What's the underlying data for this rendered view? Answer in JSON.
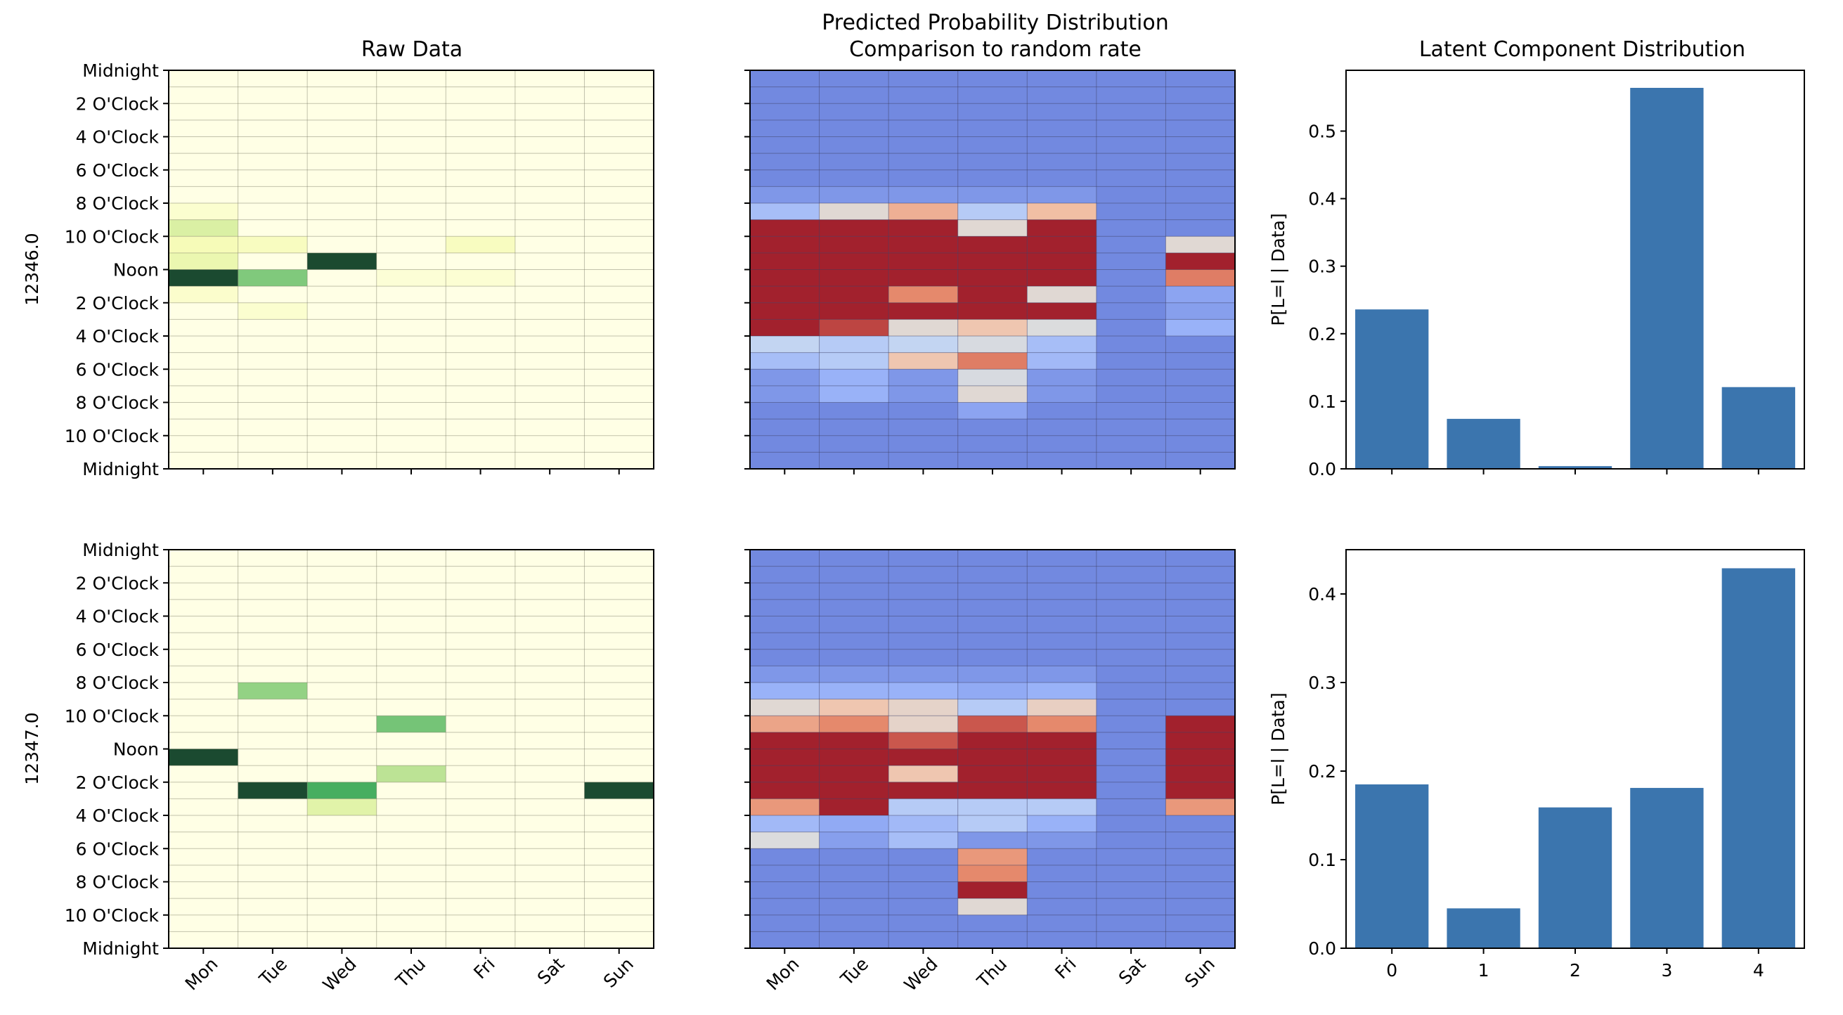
{
  "titles": {
    "raw": "Raw Data",
    "pred_line1": "Predicted Probability Distribution",
    "pred_line2": "Comparison to random rate",
    "latent": "Latent Component Distribution"
  },
  "row_labels": [
    "12346.0",
    "12347.0"
  ],
  "latent_ylabel": "P[L=l | Data]",
  "colors": {
    "raw_colormap": [
      "#ffffe5",
      "#f7fcb9",
      "#d9f0a3",
      "#addd8e",
      "#78c679",
      "#41ab5d",
      "#238443",
      "#1b4a30"
    ],
    "pred_colormap": [
      "#7289e0",
      "#97b0f8",
      "#c0d4f5",
      "#dddcdb",
      "#f2c2a8",
      "#e68b6d",
      "#c9544b",
      "#a2212d"
    ],
    "bar": "#3b75ae"
  },
  "chart_data": [
    {
      "type": "heatmap",
      "title": "Raw Data",
      "ylabel": "12346.0",
      "days": [
        "Mon",
        "Tue",
        "Wed",
        "Thu",
        "Fri",
        "Sat",
        "Sun"
      ],
      "hour_ticks": [
        "Midnight",
        "2 O'Clock",
        "4 O'Clock",
        "6 O'Clock",
        "8 O'Clock",
        "10 O'Clock",
        "Noon",
        "2 O'Clock",
        "4 O'Clock",
        "6 O'Clock",
        "8 O'Clock",
        "10 O'Clock",
        "Midnight"
      ],
      "show_x_labels": false,
      "cells": [
        [
          8,
          0,
          0.07
        ],
        [
          9,
          0,
          0.28
        ],
        [
          10,
          0,
          0.15
        ],
        [
          13,
          0,
          0.08
        ],
        [
          14,
          1,
          0.07
        ],
        [
          10,
          1,
          0.12
        ],
        [
          12,
          1,
          0.55
        ],
        [
          11,
          2,
          1.0
        ],
        [
          12,
          3,
          0.05
        ],
        [
          10,
          4,
          0.12
        ],
        [
          12,
          4,
          0.06
        ],
        [
          11,
          0,
          0.2
        ],
        [
          12,
          0,
          1.0
        ]
      ]
    },
    {
      "type": "heatmap",
      "title": "Predicted Probability Distribution\nComparison to random rate",
      "days": [
        "Mon",
        "Tue",
        "Wed",
        "Thu",
        "Fri",
        "Sat",
        "Sun"
      ],
      "show_x_labels": false,
      "rows": [
        [
          0,
          0,
          0,
          0,
          0,
          0,
          0
        ],
        [
          0,
          0,
          0,
          0,
          0,
          0,
          0
        ],
        [
          0,
          0,
          0,
          0,
          0,
          0,
          0
        ],
        [
          0,
          0,
          0,
          0,
          0,
          0,
          0
        ],
        [
          0,
          0,
          0,
          0,
          0,
          0,
          0
        ],
        [
          0,
          0,
          0,
          0,
          0,
          0,
          0
        ],
        [
          0,
          0,
          0,
          0,
          0,
          0,
          0
        ],
        [
          0.05,
          0.05,
          0.05,
          0.05,
          0.05,
          0,
          0
        ],
        [
          0.2,
          0.45,
          0.62,
          0.25,
          0.58,
          0,
          0
        ],
        [
          1,
          1,
          1,
          0.45,
          1,
          0,
          0
        ],
        [
          1,
          1,
          1,
          1,
          1,
          0,
          0.45
        ],
        [
          1,
          1,
          1,
          1,
          1,
          0,
          1
        ],
        [
          1,
          1,
          1,
          1,
          1,
          0,
          0.75
        ],
        [
          1,
          1,
          0.72,
          1,
          0.45,
          0,
          0.1
        ],
        [
          1,
          1,
          1,
          1,
          1,
          0,
          0.08
        ],
        [
          1,
          0.9,
          0.45,
          0.55,
          0.42,
          0,
          0.15
        ],
        [
          0.3,
          0.25,
          0.3,
          0.4,
          0.2,
          0,
          0
        ],
        [
          0.2,
          0.25,
          0.55,
          0.75,
          0.18,
          0,
          0
        ],
        [
          0.05,
          0.15,
          0.05,
          0.4,
          0.05,
          0,
          0
        ],
        [
          0.05,
          0.15,
          0.05,
          0.45,
          0.05,
          0,
          0
        ],
        [
          0,
          0,
          0,
          0.1,
          0,
          0,
          0
        ],
        [
          0,
          0,
          0,
          0,
          0,
          0,
          0
        ],
        [
          0,
          0,
          0,
          0,
          0,
          0,
          0
        ],
        [
          0,
          0,
          0,
          0,
          0,
          0,
          0
        ]
      ]
    },
    {
      "type": "bar",
      "title": "Latent Component Distribution",
      "ylabel": "P[L=l | Data]",
      "categories": [
        "0",
        "1",
        "2",
        "3",
        "4"
      ],
      "values": [
        0.236,
        0.074,
        0.004,
        0.564,
        0.121
      ],
      "ylim": [
        0,
        0.59
      ],
      "yticks": [
        "0.0",
        "0.1",
        "0.2",
        "0.3",
        "0.4",
        "0.5"
      ],
      "show_x_labels": false
    },
    {
      "type": "heatmap",
      "ylabel": "12347.0",
      "days": [
        "Mon",
        "Tue",
        "Wed",
        "Thu",
        "Fri",
        "Sat",
        "Sun"
      ],
      "hour_ticks": [
        "Midnight",
        "2 O'Clock",
        "4 O'Clock",
        "6 O'Clock",
        "8 O'Clock",
        "10 O'Clock",
        "Noon",
        "2 O'Clock",
        "4 O'Clock",
        "6 O'Clock",
        "8 O'Clock",
        "10 O'Clock",
        "Midnight"
      ],
      "show_x_labels": true,
      "cells": [
        [
          8,
          1,
          0.5
        ],
        [
          10,
          3,
          0.58
        ],
        [
          12,
          0,
          1.0
        ],
        [
          13,
          3,
          0.38
        ],
        [
          14,
          1,
          1.0
        ],
        [
          14,
          2,
          0.7
        ],
        [
          15,
          2,
          0.25
        ],
        [
          14,
          6,
          1.0
        ]
      ]
    },
    {
      "type": "heatmap",
      "days": [
        "Mon",
        "Tue",
        "Wed",
        "Thu",
        "Fri",
        "Sat",
        "Sun"
      ],
      "show_x_labels": true,
      "rows": [
        [
          0,
          0,
          0,
          0,
          0,
          0,
          0
        ],
        [
          0,
          0,
          0,
          0,
          0,
          0,
          0
        ],
        [
          0,
          0,
          0,
          0,
          0,
          0,
          0
        ],
        [
          0,
          0,
          0,
          0,
          0,
          0,
          0
        ],
        [
          0,
          0,
          0,
          0,
          0,
          0,
          0
        ],
        [
          0,
          0,
          0,
          0,
          0,
          0,
          0
        ],
        [
          0,
          0,
          0,
          0,
          0,
          0,
          0
        ],
        [
          0.05,
          0.05,
          0.05,
          0.05,
          0.05,
          0,
          0
        ],
        [
          0.15,
          0.15,
          0.15,
          0.12,
          0.15,
          0,
          0
        ],
        [
          0.45,
          0.55,
          0.48,
          0.25,
          0.5,
          0,
          0
        ],
        [
          0.65,
          0.72,
          0.48,
          0.85,
          0.72,
          0,
          1
        ],
        [
          1,
          1,
          0.85,
          1,
          1,
          0,
          1
        ],
        [
          1,
          1,
          1,
          1,
          1,
          0,
          1
        ],
        [
          1,
          1,
          0.55,
          1,
          1,
          0,
          1
        ],
        [
          1,
          1,
          1,
          1,
          1,
          0,
          1
        ],
        [
          0.68,
          1,
          0.25,
          0.25,
          0.25,
          0,
          0.68
        ],
        [
          0.18,
          0.12,
          0.18,
          0.25,
          0.15,
          0,
          0
        ],
        [
          0.42,
          0.08,
          0.2,
          0.05,
          0.05,
          0,
          0
        ],
        [
          0,
          0,
          0,
          0.68,
          0,
          0,
          0
        ],
        [
          0,
          0,
          0,
          0.72,
          0,
          0,
          0
        ],
        [
          0,
          0,
          0,
          1,
          0,
          0,
          0
        ],
        [
          0,
          0,
          0,
          0.45,
          0,
          0,
          0
        ],
        [
          0,
          0,
          0,
          0,
          0,
          0,
          0
        ],
        [
          0,
          0,
          0,
          0,
          0,
          0,
          0
        ]
      ]
    },
    {
      "type": "bar",
      "ylabel": "P[L=l | Data]",
      "categories": [
        "0",
        "1",
        "2",
        "3",
        "4"
      ],
      "values": [
        0.185,
        0.045,
        0.159,
        0.181,
        0.429
      ],
      "ylim": [
        0,
        0.45
      ],
      "yticks": [
        "0.0",
        "0.1",
        "0.2",
        "0.3",
        "0.4"
      ],
      "show_x_labels": true
    }
  ]
}
